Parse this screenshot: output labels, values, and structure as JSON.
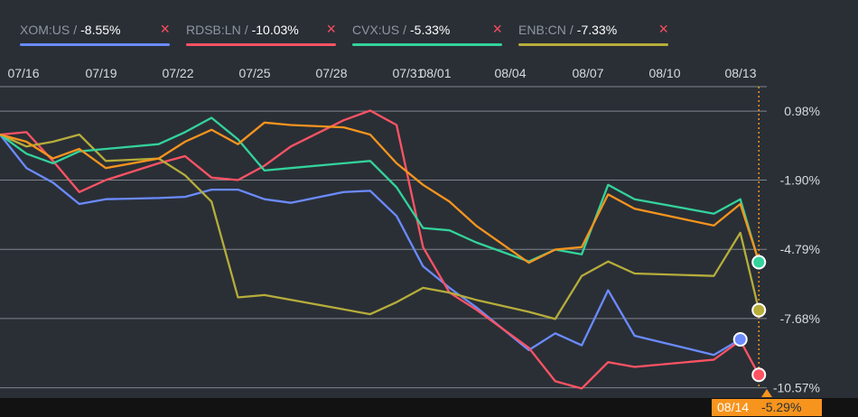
{
  "legend": [
    {
      "name": "XOM:US",
      "value": "-8.55%",
      "color": "#6b8bff"
    },
    {
      "name": "RDSB:LN",
      "value": "-10.03%",
      "color": "#ff5364"
    },
    {
      "name": "CVX:US",
      "value": "-5.33%",
      "color": "#33d39b"
    },
    {
      "name": "ENB:CN",
      "value": "-7.33%",
      "color": "#b6ad3a"
    }
  ],
  "tooltip": {
    "date": "08/14",
    "value": "-5.29%"
  },
  "colors": {
    "background": "#2a2f36",
    "grid": "#7f858c",
    "accent": "#f7941d"
  },
  "chart_data": {
    "type": "line",
    "x_labels": [
      "07/16",
      "07/19",
      "07/22",
      "07/25",
      "07/28",
      "07/31",
      "08/01",
      "08/04",
      "08/07",
      "08/10",
      "08/13"
    ],
    "y_ticks": [
      "0.98%",
      "-1.90%",
      "-4.79%",
      "-7.68%",
      "-10.57%"
    ],
    "y_tick_values": [
      0.98,
      -1.9,
      -4.79,
      -7.68,
      -10.57
    ],
    "ylim": [
      -11.0,
      2.0
    ],
    "xlim": [
      0,
      29
    ],
    "grid": true,
    "legend_position": "top",
    "series": [
      {
        "name": "XOM:US",
        "color": "#6b8bff",
        "points": [
          [
            0,
            0.0
          ],
          [
            1,
            -1.4
          ],
          [
            2,
            -2.0
          ],
          [
            3,
            -2.9
          ],
          [
            4,
            -2.7
          ],
          [
            6,
            -2.65
          ],
          [
            7,
            -2.6
          ],
          [
            8,
            -2.3
          ],
          [
            9,
            -2.3
          ],
          [
            10,
            -2.7
          ],
          [
            11,
            -2.85
          ],
          [
            13,
            -2.4
          ],
          [
            14,
            -2.35
          ],
          [
            15,
            -3.4
          ],
          [
            16,
            -5.5
          ],
          [
            17,
            -6.4
          ],
          [
            18,
            -7.2
          ],
          [
            20,
            -9.0
          ],
          [
            21,
            -8.3
          ],
          [
            22,
            -8.8
          ],
          [
            23,
            -6.5
          ],
          [
            24,
            -8.4
          ],
          [
            27,
            -9.2
          ],
          [
            28,
            -8.55
          ]
        ]
      },
      {
        "name": "RDSB:LN",
        "color": "#ff5364",
        "points": [
          [
            0,
            0.0
          ],
          [
            1,
            0.1
          ],
          [
            2,
            -1.1
          ],
          [
            3,
            -2.4
          ],
          [
            4,
            -1.9
          ],
          [
            6,
            -1.2
          ],
          [
            7,
            -0.9
          ],
          [
            8,
            -1.8
          ],
          [
            9,
            -1.9
          ],
          [
            10,
            -1.3
          ],
          [
            11,
            -0.5
          ],
          [
            13,
            0.6
          ],
          [
            14,
            1.0
          ],
          [
            15,
            0.4
          ],
          [
            16,
            -4.7
          ],
          [
            17,
            -6.6
          ],
          [
            18,
            -7.3
          ],
          [
            20,
            -8.9
          ],
          [
            21,
            -10.3
          ],
          [
            22,
            -10.6
          ],
          [
            23,
            -9.5
          ],
          [
            24,
            -9.7
          ],
          [
            27,
            -9.4
          ],
          [
            28,
            -8.6
          ],
          [
            28.7,
            -10.03
          ]
        ]
      },
      {
        "name": "ENB:CN",
        "color": "#b6ad3a",
        "points": [
          [
            0,
            0.0
          ],
          [
            1,
            -0.5
          ],
          [
            2,
            -0.3
          ],
          [
            3,
            0.0
          ],
          [
            4,
            -1.1
          ],
          [
            6,
            -1.0
          ],
          [
            7,
            -1.7
          ],
          [
            8,
            -2.8
          ],
          [
            9,
            -6.8
          ],
          [
            10,
            -6.7
          ],
          [
            13,
            -7.3
          ],
          [
            14,
            -7.5
          ],
          [
            15,
            -7.0
          ],
          [
            16,
            -6.4
          ],
          [
            17,
            -6.6
          ],
          [
            18,
            -6.9
          ],
          [
            20,
            -7.4
          ],
          [
            21,
            -7.7
          ],
          [
            22,
            -5.9
          ],
          [
            23,
            -5.3
          ],
          [
            24,
            -5.8
          ],
          [
            27,
            -5.9
          ],
          [
            28,
            -4.1
          ],
          [
            28.7,
            -7.33
          ]
        ]
      },
      {
        "name": "CVX:US",
        "color": "#33d39b",
        "points": [
          [
            0,
            0.0
          ],
          [
            1,
            -0.8
          ],
          [
            2,
            -1.2
          ],
          [
            3,
            -0.7
          ],
          [
            4,
            -0.6
          ],
          [
            6,
            -0.4
          ],
          [
            7,
            0.1
          ],
          [
            8,
            0.7
          ],
          [
            9,
            -0.2
          ],
          [
            10,
            -1.5
          ],
          [
            11,
            -1.4
          ],
          [
            13,
            -1.2
          ],
          [
            14,
            -1.1
          ],
          [
            15,
            -2.2
          ],
          [
            16,
            -3.9
          ],
          [
            17,
            -4.0
          ],
          [
            18,
            -4.5
          ],
          [
            20,
            -5.3
          ],
          [
            21,
            -4.8
          ],
          [
            22,
            -5.0
          ],
          [
            23,
            -2.1
          ],
          [
            24,
            -2.7
          ],
          [
            27,
            -3.3
          ],
          [
            28,
            -2.7
          ],
          [
            28.7,
            -5.33
          ]
        ]
      },
      {
        "name": "08/14 marker",
        "color": "#f7941d",
        "points": [
          [
            0,
            0.0
          ],
          [
            1,
            -0.3
          ],
          [
            2,
            -1.0
          ],
          [
            3,
            -0.6
          ],
          [
            4,
            -1.4
          ],
          [
            6,
            -1.0
          ],
          [
            7,
            -0.3
          ],
          [
            8,
            0.2
          ],
          [
            9,
            -0.4
          ],
          [
            10,
            0.5
          ],
          [
            11,
            0.4
          ],
          [
            13,
            0.3
          ],
          [
            14,
            0.0
          ],
          [
            15,
            -1.2
          ],
          [
            16,
            -2.1
          ],
          [
            17,
            -2.8
          ],
          [
            18,
            -3.8
          ],
          [
            20,
            -5.35
          ],
          [
            21,
            -4.8
          ],
          [
            22,
            -4.7
          ],
          [
            23,
            -2.5
          ],
          [
            24,
            -3.1
          ],
          [
            27,
            -3.8
          ],
          [
            28,
            -2.9
          ],
          [
            28.7,
            -5.29
          ]
        ]
      }
    ]
  }
}
